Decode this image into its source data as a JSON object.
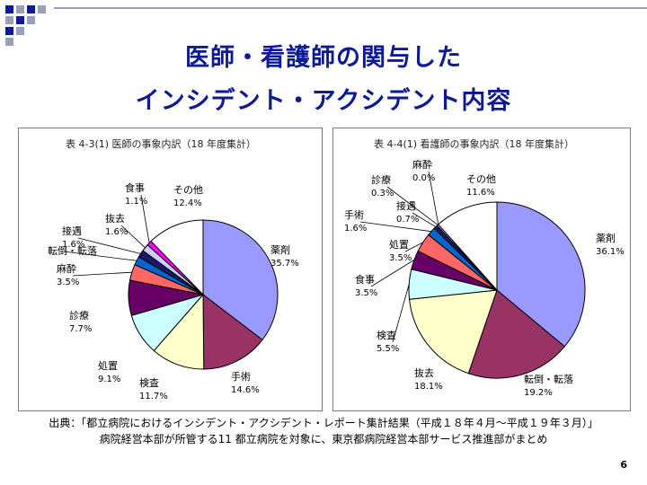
{
  "slide": {
    "title_line1": "医師・看護師の関与した",
    "title_line2": "インシデント・アクシデント内容",
    "page_number": "6",
    "source_line1": "出典：「都立病院におけるインシデント・アクシデント・レポート集計結果（平成１８年４月～平成１９年３月）」",
    "source_line2": "病院経営本部が所管する11 都立病院を対象に、東京都病院経営本部サービス推進部がまとめ",
    "colors": {
      "title": "#0d1a94",
      "deco_blue": "#0d1a94",
      "deco_gray": "#9aa0b8",
      "border": "#7a7a7a"
    }
  },
  "chart_data": [
    {
      "type": "pie",
      "title": "表 4-3(1) 医師の事象内訳（18 年度集計）",
      "start_angle_deg": 0,
      "direction": "clockwise",
      "slices": [
        {
          "label": "薬剤",
          "value": 35.7,
          "display": "35.7%",
          "color": "#9999ff"
        },
        {
          "label": "手術",
          "value": 14.6,
          "display": "14.6%",
          "color": "#993366"
        },
        {
          "label": "検査",
          "value": 11.7,
          "display": "11.7%",
          "color": "#ffffcc"
        },
        {
          "label": "処置",
          "value": 9.1,
          "display": "9.1%",
          "color": "#ccffff"
        },
        {
          "label": "診療",
          "value": 7.7,
          "display": "7.7%",
          "color": "#660066"
        },
        {
          "label": "麻酔",
          "value": 3.5,
          "display": "3.5%",
          "color": "#ff6666"
        },
        {
          "label": "転倒・転落",
          "value": 1.9,
          "display": "",
          "color": "#0066cc"
        },
        {
          "label": "接遇",
          "value": 1.6,
          "display": "1.6%",
          "color": "#1a1a66"
        },
        {
          "label": "抜去",
          "value": 1.6,
          "display": "1.6%",
          "color": "#ccccff"
        },
        {
          "label": "食事",
          "value": 1.1,
          "display": "1.1%",
          "color": "#ff00ff"
        },
        {
          "label": "その他",
          "value": 12.4,
          "display": "12.4%",
          "color": "#ffffff"
        }
      ]
    },
    {
      "type": "pie",
      "title": "表 4-4(1) 看護師の事象内訳（18 年度集計）",
      "start_angle_deg": 0,
      "direction": "clockwise",
      "slices": [
        {
          "label": "薬剤",
          "value": 36.1,
          "display": "36.1%",
          "color": "#9999ff"
        },
        {
          "label": "転倒・転落",
          "value": 19.2,
          "display": "19.2%",
          "color": "#993366"
        },
        {
          "label": "抜去",
          "value": 18.1,
          "display": "18.1%",
          "color": "#ffffcc"
        },
        {
          "label": "検査",
          "value": 5.5,
          "display": "5.5%",
          "color": "#ccffff"
        },
        {
          "label": "食事",
          "value": 3.5,
          "display": "3.5%",
          "color": "#660066"
        },
        {
          "label": "処置",
          "value": 3.5,
          "display": "3.5%",
          "color": "#ff6666"
        },
        {
          "label": "手術",
          "value": 1.6,
          "display": "1.6%",
          "color": "#0066cc"
        },
        {
          "label": "接遇",
          "value": 0.7,
          "display": "0.7%",
          "color": "#1a1a66"
        },
        {
          "label": "診療",
          "value": 0.3,
          "display": "0.3%",
          "color": "#ccccff"
        },
        {
          "label": "麻酔",
          "value": 0.0,
          "display": "0.0%",
          "color": "#ff00ff"
        },
        {
          "label": "その他",
          "value": 11.6,
          "display": "11.6%",
          "color": "#ffffff"
        }
      ]
    }
  ]
}
